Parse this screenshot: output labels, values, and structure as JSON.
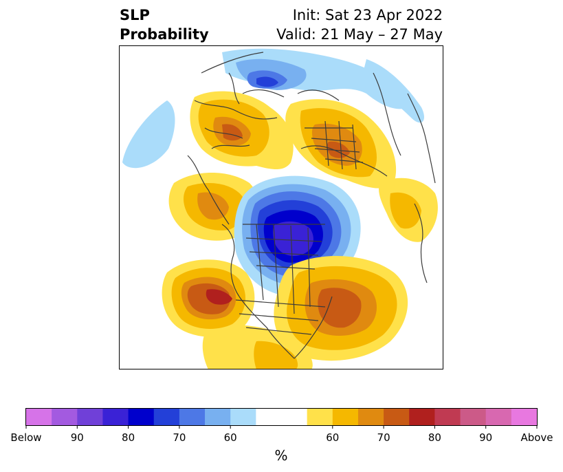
{
  "title": {
    "left_line1": "SLP",
    "left_line2": "Probability",
    "init": "Init: Sat 23 Apr 2022",
    "valid": "Valid: 21 May – 27 May"
  },
  "colorbar": {
    "unit": "%",
    "tick_labels": [
      "Below",
      "90",
      "80",
      "70",
      "60",
      "60",
      "70",
      "80",
      "90",
      "Above"
    ],
    "colors": [
      "#d673e8",
      "#a35ae0",
      "#7040d8",
      "#3a22d6",
      "#0000cc",
      "#2340d8",
      "#4d78e6",
      "#78b0f0",
      "#aadcfa",
      "#ffffff",
      "#ffffff",
      "#ffe14a",
      "#f5b800",
      "#e08a10",
      "#c85a14",
      "#b0201e",
      "#c03a52",
      "#cc5a88",
      "#d868b0",
      "#e878e0"
    ]
  },
  "map_colors": {
    "below_light": "#aadcfa",
    "below_60": "#78b0f0",
    "below_70": "#4d78e6",
    "below_75": "#2340d8",
    "below_80": "#0000cc",
    "below_85": "#3a22d6",
    "above_light": "#ffe14a",
    "above_60": "#f5b800",
    "above_70": "#e08a10",
    "above_75": "#c85a14",
    "above_80": "#b0201e",
    "border": "#3a3a3a"
  }
}
